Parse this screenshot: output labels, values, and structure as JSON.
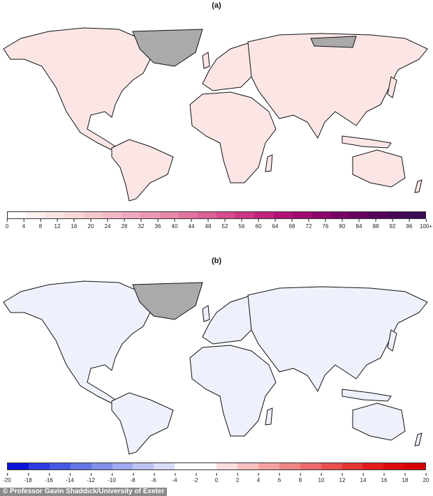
{
  "panel_a": {
    "label": "(a)",
    "colorbar_ticks": [
      "0",
      "4",
      "8",
      "12",
      "16",
      "20",
      "24",
      "28",
      "32",
      "36",
      "40",
      "44",
      "48",
      "52",
      "56",
      "60",
      "64",
      "68",
      "72",
      "76",
      "80",
      "84",
      "88",
      "92",
      "96",
      "100+"
    ],
    "colorbar_colors": [
      "#ffffff",
      "#fdf0ef",
      "#fbe3e3",
      "#f9d6d8",
      "#f6c7cf",
      "#f3b8c6",
      "#f0a8bd",
      "#ec97b3",
      "#e886aa",
      "#e374a0",
      "#dd6096",
      "#d64b8c",
      "#cc3584",
      "#c0227d",
      "#b01276",
      "#9f0a70",
      "#8c066b",
      "#790466",
      "#670461",
      "#56055c",
      "#470758",
      "#3c0a55"
    ],
    "map_land_color": "#fbe6e5",
    "hotspot_color": "#a8207a"
  },
  "panel_b": {
    "label": "(b)",
    "colorbar_ticks": [
      "-20",
      "-18",
      "-16",
      "-14",
      "-12",
      "-10",
      "-8",
      "-6",
      "-4",
      "-2",
      "0",
      "2",
      "4",
      "6",
      "8",
      "10",
      "12",
      "14",
      "16",
      "18",
      "20"
    ],
    "colorbar_colors": [
      "#0a14d8",
      "#2a3be0",
      "#4658e2",
      "#6575e6",
      "#8290ea",
      "#9faaef",
      "#bcc3f3",
      "#d8dcf8",
      "#ffffff",
      "#ffffff",
      "#fbdcdc",
      "#f8c0c0",
      "#f4a3a3",
      "#f08686",
      "#ec6a6a",
      "#e84f4f",
      "#e43535",
      "#e01c1c",
      "#dc0a0a",
      "#d80000"
    ],
    "map_land_color": "#eef0fb",
    "warm_color": "#e8302f",
    "cool_color": "#4a5ee0"
  },
  "credit": "© Professor Gavin Shaddick/University of Exeter"
}
